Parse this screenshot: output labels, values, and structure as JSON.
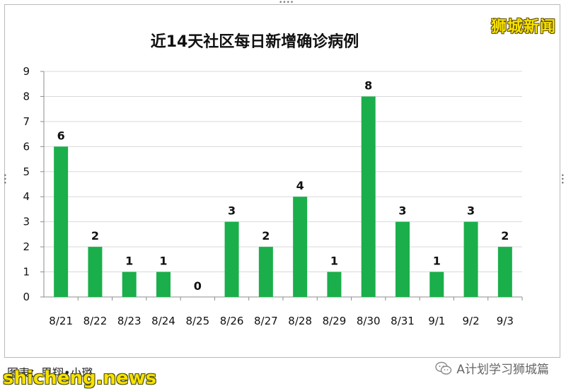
{
  "brand_label": "狮城新闻",
  "credit_text": "图表：思翔•小璐",
  "watermark_text": "shicheng.news",
  "account_label": "A计划学习狮城篇",
  "icons": {
    "account": "wechat-icon"
  },
  "colors": {
    "bar": "#1aaf4b",
    "grid": "#d9d9d9",
    "axis": "#8c8c8c"
  },
  "chart_data": {
    "type": "bar",
    "title": "近14天社区每日新增确诊病例",
    "categories": [
      "8/21",
      "8/22",
      "8/23",
      "8/24",
      "8/25",
      "8/26",
      "8/27",
      "8/28",
      "8/29",
      "8/30",
      "8/31",
      "9/1",
      "9/2",
      "9/3"
    ],
    "values": [
      6,
      2,
      1,
      1,
      0,
      3,
      2,
      4,
      1,
      8,
      3,
      1,
      3,
      2
    ],
    "ylim": [
      0,
      9
    ],
    "yticks": [
      0,
      1,
      2,
      3,
      4,
      5,
      6,
      7,
      8,
      9
    ],
    "grid": true,
    "data_labels": true
  }
}
